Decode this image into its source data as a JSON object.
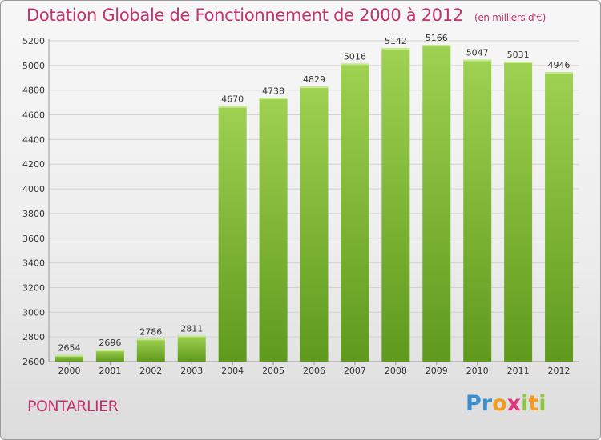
{
  "title": "Dotation Globale de Fonctionnement de 2000 à 2012",
  "subtitle": "(en milliers d'€)",
  "commune": "PONTARLIER",
  "logo": {
    "p1": "Pr",
    "p2": "o",
    "p3": "x",
    "p4": "i",
    "p5": "t",
    "p6": "i"
  },
  "colors": {
    "title": "#c0336e",
    "bar_top": "#9fd152",
    "bar_bottom": "#5f9a1c"
  },
  "chart_data": {
    "type": "bar",
    "categories": [
      "2000",
      "2001",
      "2002",
      "2003",
      "2004",
      "2005",
      "2006",
      "2007",
      "2008",
      "2009",
      "2010",
      "2011",
      "2012"
    ],
    "values": [
      2654,
      2696,
      2786,
      2811,
      4670,
      4738,
      4829,
      5016,
      5142,
      5166,
      5047,
      5031,
      4946
    ],
    "ylim": [
      2600,
      5200
    ],
    "yticks": [
      2600,
      2800,
      3000,
      3200,
      3400,
      3600,
      3800,
      4000,
      4200,
      4400,
      4600,
      4800,
      5000,
      5200
    ],
    "grid": true,
    "data_labels": true
  }
}
